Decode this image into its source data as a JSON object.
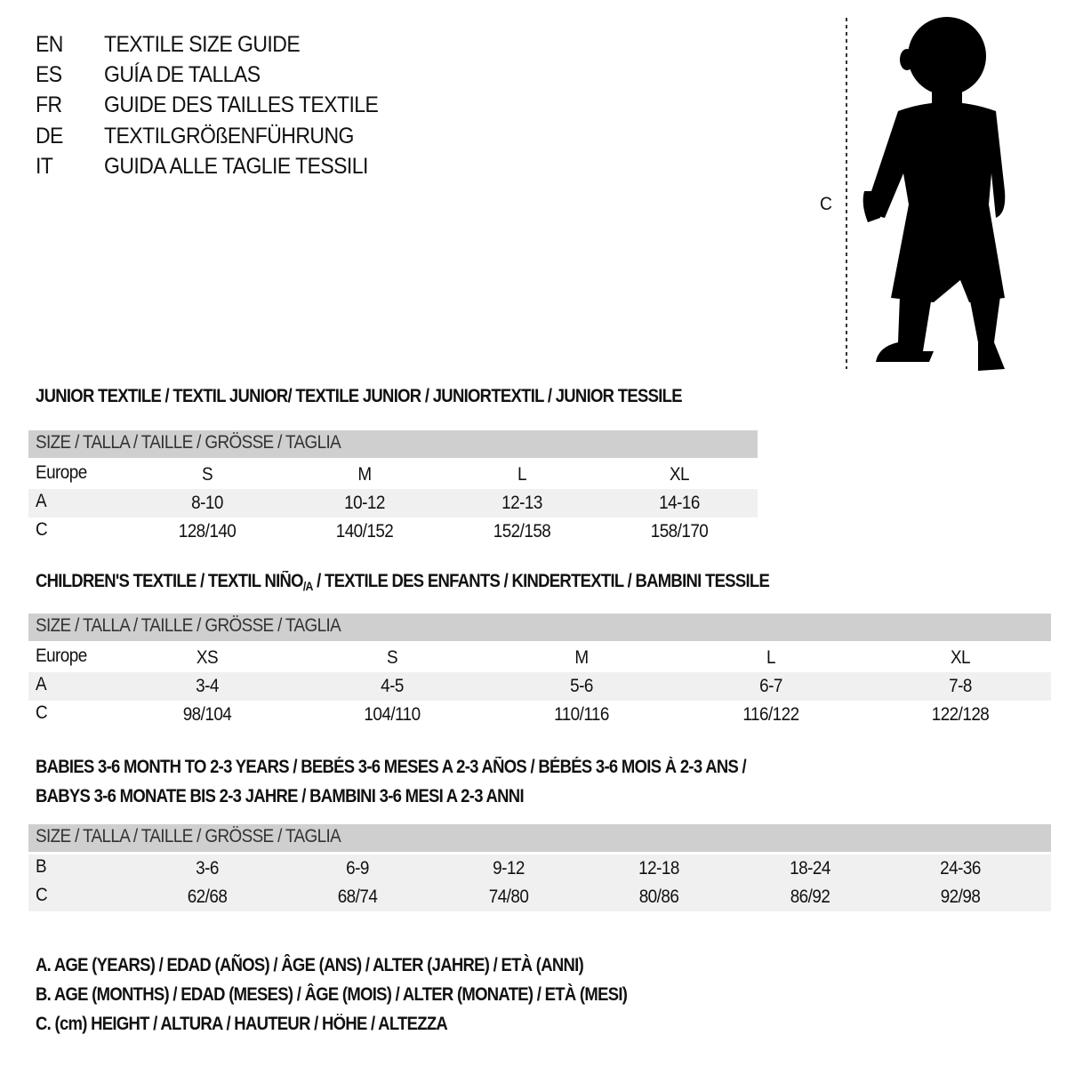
{
  "titles": [
    {
      "lang": "EN",
      "text": "TEXTILE SIZE GUIDE"
    },
    {
      "lang": "ES",
      "text": "GUÍA DE TALLAS"
    },
    {
      "lang": "FR",
      "text": "GUIDE DES TAILLES TEXTILE"
    },
    {
      "lang": "DE",
      "text": "TEXTILGRÖßENFÜHRUNG"
    },
    {
      "lang": "IT",
      "text": "GUIDA ALLE TAGLIE TESSILI"
    }
  ],
  "figure": {
    "measure_label": "C",
    "icon": "child-silhouette-icon"
  },
  "header_label": "SIZE / TALLA / TAILLE / GRÖSSE / TAGLIA",
  "colors": {
    "header_bg": "#cfcfcf",
    "shade_bg": "#f0f0f0"
  },
  "junior": {
    "title": "JUNIOR TEXTILE / TEXTIL JUNIOR/ TEXTILE JUNIOR / JUNIORTEXTIL / JUNIOR TESSILE",
    "rows": [
      {
        "label": "Europe",
        "values": [
          "S",
          "M",
          "L",
          "XL"
        ]
      },
      {
        "label": "A",
        "values": [
          "8-10",
          "10-12",
          "12-13",
          "14-16"
        ]
      },
      {
        "label": "C",
        "values": [
          "128/140",
          "140/152",
          "152/158",
          "158/170"
        ]
      }
    ]
  },
  "children": {
    "title_a": "CHILDREN'S TEXTILE / TEXTIL NIÑO",
    "title_sub": "/A",
    "title_b": " / TEXTILE DES ENFANTS / KINDERTEXTIL / BAMBINI TESSILE",
    "rows": [
      {
        "label": "Europe",
        "values": [
          "XS",
          "S",
          "M",
          "L",
          "XL"
        ]
      },
      {
        "label": "A",
        "values": [
          "3-4",
          "4-5",
          "5-6",
          "6-7",
          "7-8"
        ]
      },
      {
        "label": "C",
        "values": [
          "98/104",
          "104/110",
          "110/116",
          "116/122",
          "122/128"
        ]
      }
    ]
  },
  "babies": {
    "title_line1": "BABIES 3-6 MONTH TO 2-3 YEARS / BEBÉS 3-6 MESES A 2-3 AÑOS / BÉBÉS 3-6 MOIS À 2-3 ANS /",
    "title_line2": "BABYS 3-6 MONATE BIS 2-3 JAHRE / BAMBINI 3-6 MESI A 2-3 ANNI",
    "rows": [
      {
        "label": "B",
        "values": [
          "3-6",
          "6-9",
          "9-12",
          "12-18",
          "18-24",
          "24-36"
        ]
      },
      {
        "label": "C",
        "values": [
          "62/68",
          "68/74",
          "74/80",
          "80/86",
          "86/92",
          "92/98"
        ]
      }
    ]
  },
  "legend": [
    "A. AGE (YEARS) / EDAD (AÑOS) / ÂGE (ANS) / ALTER (JAHRE) / ETÀ (ANNI)",
    "B. AGE (MONTHS) / EDAD (MESES) / ÂGE (MOIS) / ALTER (MONATE) / ETÀ (MESI)",
    "C. (cm) HEIGHT / ALTURA / HAUTEUR / HÖHE / ALTEZZA"
  ]
}
